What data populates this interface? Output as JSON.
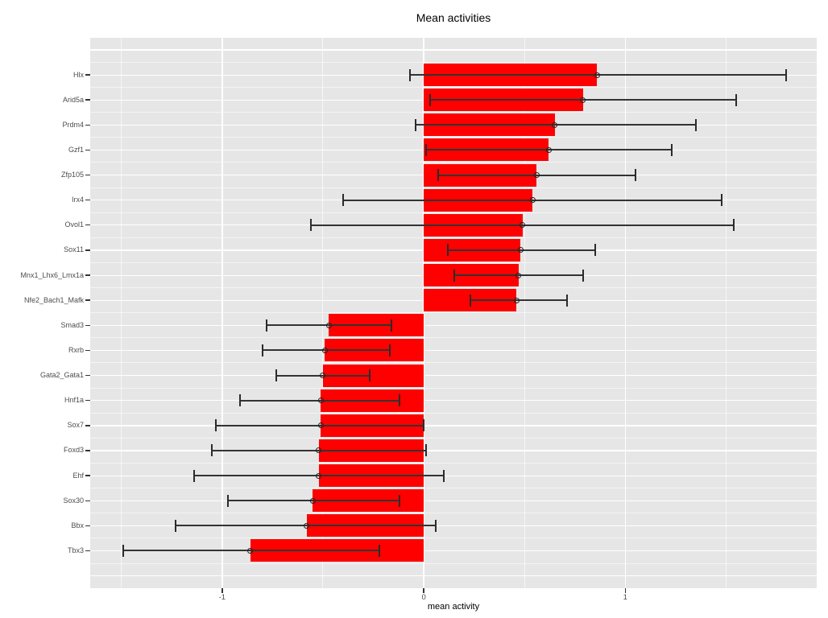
{
  "chart_data": {
    "type": "bar",
    "orientation": "horizontal",
    "title": "Mean activities",
    "xlabel": "mean activity",
    "ylabel": "",
    "xlim": [
      -1.655,
      1.95
    ],
    "x_major_ticks": [
      -1,
      0,
      1
    ],
    "x_major_tick_labels": [
      "-1",
      "0",
      "1"
    ],
    "x_minor_gridlines": [
      -1.5,
      -0.5,
      0.5,
      1.5
    ],
    "grid": "on",
    "legend": "none",
    "categories": [
      "Hlx",
      "Arid5a",
      "Prdm4",
      "Gzf1",
      "Zfp105",
      "Irx4",
      "Ovol1",
      "Sox11",
      "Mnx1_Lhx6_Lmx1a",
      "Nfe2_Bach1_Mafk",
      "Smad3",
      "Rxrb",
      "Gata2_Gata1",
      "Hnf1a",
      "Sox7",
      "Foxd3",
      "Ehf",
      "Sox30",
      "Bbx",
      "Tbx3"
    ],
    "values": [
      0.86,
      0.79,
      0.65,
      0.62,
      0.56,
      0.54,
      0.49,
      0.48,
      0.47,
      0.46,
      -0.47,
      -0.49,
      -0.5,
      -0.51,
      -0.51,
      -0.52,
      -0.52,
      -0.55,
      -0.58,
      -0.86
    ],
    "error_low": [
      -0.07,
      0.03,
      -0.04,
      0.01,
      0.07,
      -0.4,
      -0.56,
      0.12,
      0.15,
      0.23,
      -0.78,
      -0.8,
      -0.73,
      -0.91,
      -1.03,
      -1.05,
      -1.14,
      -0.97,
      -1.23,
      -1.49
    ],
    "error_high": [
      1.8,
      1.55,
      1.35,
      1.23,
      1.05,
      1.48,
      1.54,
      0.85,
      0.79,
      0.71,
      -0.16,
      -0.17,
      -0.27,
      -0.12,
      0.0,
      0.01,
      0.1,
      -0.12,
      0.06,
      -0.22
    ],
    "colors": {
      "bar_fill": "#FF0000",
      "panel_background": "#E6E6E6",
      "gridline": "#FFFFFF",
      "error_bar": "#333333",
      "axis_text": "#4D4D4D",
      "title_text": "#000000"
    }
  }
}
